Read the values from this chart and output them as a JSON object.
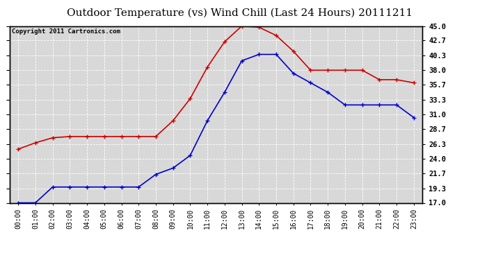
{
  "title": "Outdoor Temperature (vs) Wind Chill (Last 24 Hours) 20111211",
  "copyright_text": "Copyright 2011 Cartronics.com",
  "hours": [
    "00:00",
    "01:00",
    "02:00",
    "03:00",
    "04:00",
    "05:00",
    "06:00",
    "07:00",
    "08:00",
    "09:00",
    "10:00",
    "11:00",
    "12:00",
    "13:00",
    "14:00",
    "15:00",
    "16:00",
    "17:00",
    "18:00",
    "19:00",
    "20:00",
    "21:00",
    "22:00",
    "23:00"
  ],
  "temp": [
    25.5,
    26.5,
    27.3,
    27.5,
    27.5,
    27.5,
    27.5,
    27.5,
    27.5,
    30.0,
    33.5,
    38.5,
    42.5,
    45.0,
    44.8,
    43.5,
    41.0,
    38.0,
    38.0,
    38.0,
    38.0,
    36.5,
    36.5,
    36.0
  ],
  "wind_chill": [
    17.0,
    17.0,
    19.5,
    19.5,
    19.5,
    19.5,
    19.5,
    19.5,
    21.5,
    22.5,
    24.5,
    30.0,
    34.5,
    39.5,
    40.5,
    40.5,
    37.5,
    36.0,
    34.5,
    32.5,
    32.5,
    32.5,
    32.5,
    30.5
  ],
  "temp_color": "#cc0000",
  "wind_chill_color": "#0000cc",
  "background_color": "#ffffff",
  "plot_bg_color": "#d8d8d8",
  "grid_color": "#ffffff",
  "ylim_min": 17.0,
  "ylim_max": 45.0,
  "yticks": [
    17.0,
    19.3,
    21.7,
    24.0,
    26.3,
    28.7,
    31.0,
    33.3,
    35.7,
    38.0,
    40.3,
    42.7,
    45.0
  ],
  "ytick_labels": [
    "17.0",
    "19.3",
    "21.7",
    "24.0",
    "26.3",
    "28.7",
    "31.0",
    "33.3",
    "35.7",
    "38.0",
    "40.3",
    "42.7",
    "45.0"
  ],
  "title_fontsize": 11,
  "copyright_fontsize": 6.5,
  "tick_fontsize": 7,
  "marker_size": 4,
  "linewidth": 1.2
}
